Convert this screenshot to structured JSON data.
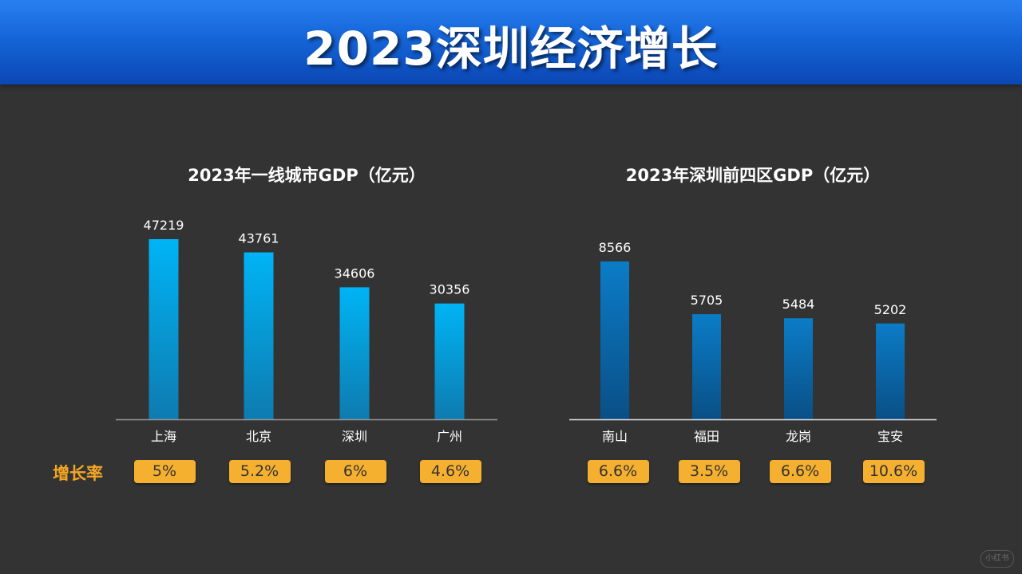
{
  "page": {
    "title": "2023深圳经济增长"
  },
  "growth_label": "增长率",
  "watermark": "小红书",
  "colors": {
    "bar_left_top": "#00b4f5",
    "bar_left_bottom": "#0e7bb0",
    "bar_right_top": "#0b7cc7",
    "bar_right_bottom": "#0a4f86",
    "badge": "#f6b030",
    "growth_label": "#f5a623"
  },
  "chart_data": [
    {
      "type": "bar",
      "title": "2023年一线城市GDP（亿元）",
      "categories": [
        "上海",
        "北京",
        "深圳",
        "广州"
      ],
      "values": [
        47219,
        43761,
        34606,
        30356
      ],
      "growth": [
        "5%",
        "5.2%",
        "6%",
        "4.6%"
      ],
      "xlabel": "",
      "ylabel": "",
      "ylim": [
        0,
        47219
      ]
    },
    {
      "type": "bar",
      "title": "2023年深圳前四区GDP（亿元）",
      "categories": [
        "南山",
        "福田",
        "龙岗",
        "宝安"
      ],
      "values": [
        8566,
        5705,
        5484,
        5202
      ],
      "growth": [
        "6.6%",
        "3.5%",
        "6.6%",
        "10.6%"
      ],
      "xlabel": "",
      "ylabel": "",
      "ylim": [
        0,
        8566
      ]
    }
  ]
}
